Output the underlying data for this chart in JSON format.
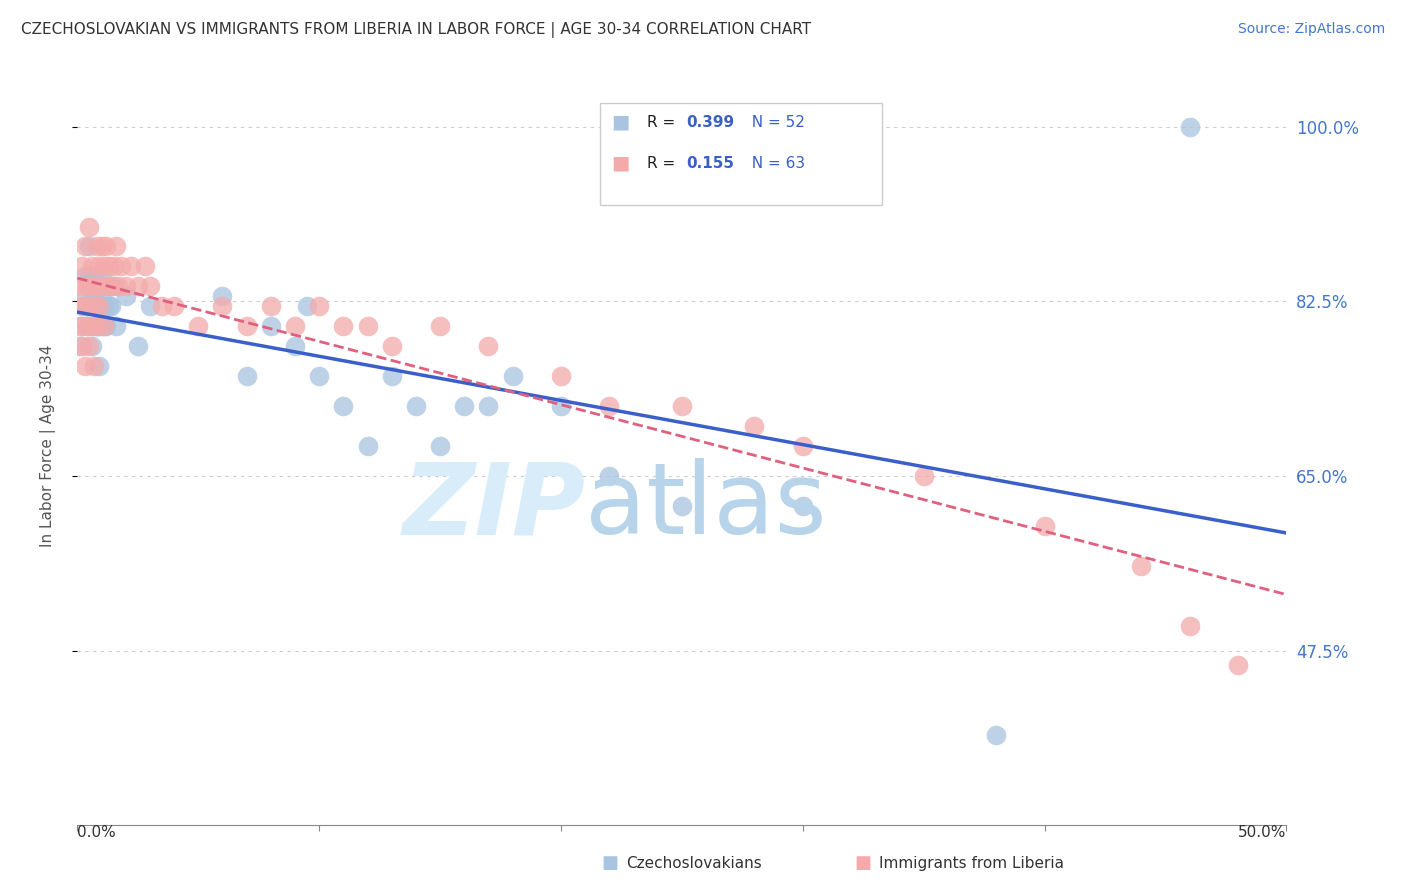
{
  "title": "CZECHOSLOVAKIAN VS IMMIGRANTS FROM LIBERIA IN LABOR FORCE | AGE 30-34 CORRELATION CHART",
  "source": "Source: ZipAtlas.com",
  "ylabel_labels": [
    "100.0%",
    "82.5%",
    "65.0%",
    "47.5%"
  ],
  "ylabel_values": [
    1.0,
    0.825,
    0.65,
    0.475
  ],
  "legend_label_blue": "Czechoslovakians",
  "legend_label_pink": "Immigrants from Liberia",
  "blue_R": 0.399,
  "blue_N": 52,
  "pink_R": 0.155,
  "pink_N": 63,
  "blue_color": "#A8C4E0",
  "pink_color": "#F4AAAA",
  "blue_line_color": "#3A5FC8",
  "pink_line_color": "#E06080",
  "xlim": [
    0.0,
    0.5
  ],
  "ylim": [
    0.3,
    1.06
  ],
  "blue_x": [
    0.001,
    0.002,
    0.003,
    0.003,
    0.004,
    0.004,
    0.005,
    0.005,
    0.005,
    0.006,
    0.006,
    0.007,
    0.007,
    0.007,
    0.008,
    0.008,
    0.009,
    0.009,
    0.009,
    0.01,
    0.01,
    0.01,
    0.011,
    0.011,
    0.012,
    0.013,
    0.014,
    0.015,
    0.016,
    0.02,
    0.025,
    0.03,
    0.06,
    0.07,
    0.08,
    0.09,
    0.095,
    0.1,
    0.11,
    0.12,
    0.13,
    0.14,
    0.15,
    0.16,
    0.17,
    0.18,
    0.2,
    0.22,
    0.25,
    0.3,
    0.38,
    0.46
  ],
  "blue_y": [
    0.78,
    0.8,
    0.83,
    0.85,
    0.82,
    0.8,
    0.85,
    0.82,
    0.88,
    0.84,
    0.78,
    0.83,
    0.8,
    0.85,
    0.82,
    0.8,
    0.84,
    0.8,
    0.76,
    0.83,
    0.85,
    0.8,
    0.84,
    0.82,
    0.8,
    0.82,
    0.82,
    0.84,
    0.8,
    0.83,
    0.78,
    0.82,
    0.83,
    0.75,
    0.8,
    0.78,
    0.82,
    0.75,
    0.72,
    0.68,
    0.75,
    0.72,
    0.68,
    0.72,
    0.72,
    0.75,
    0.72,
    0.65,
    0.62,
    0.62,
    0.39,
    1.0
  ],
  "pink_x": [
    0.001,
    0.001,
    0.002,
    0.002,
    0.002,
    0.003,
    0.003,
    0.003,
    0.004,
    0.004,
    0.005,
    0.005,
    0.005,
    0.006,
    0.006,
    0.007,
    0.007,
    0.007,
    0.008,
    0.008,
    0.008,
    0.009,
    0.009,
    0.01,
    0.01,
    0.011,
    0.011,
    0.012,
    0.012,
    0.013,
    0.014,
    0.015,
    0.016,
    0.017,
    0.018,
    0.02,
    0.022,
    0.025,
    0.028,
    0.03,
    0.035,
    0.04,
    0.05,
    0.06,
    0.07,
    0.08,
    0.09,
    0.1,
    0.11,
    0.12,
    0.13,
    0.15,
    0.17,
    0.2,
    0.22,
    0.25,
    0.28,
    0.3,
    0.35,
    0.4,
    0.44,
    0.46,
    0.48
  ],
  "pink_y": [
    0.8,
    0.84,
    0.78,
    0.82,
    0.86,
    0.76,
    0.82,
    0.88,
    0.8,
    0.84,
    0.78,
    0.84,
    0.9,
    0.8,
    0.86,
    0.82,
    0.76,
    0.84,
    0.8,
    0.84,
    0.88,
    0.82,
    0.86,
    0.84,
    0.88,
    0.8,
    0.86,
    0.84,
    0.88,
    0.86,
    0.84,
    0.86,
    0.88,
    0.84,
    0.86,
    0.84,
    0.86,
    0.84,
    0.86,
    0.84,
    0.82,
    0.82,
    0.8,
    0.82,
    0.8,
    0.82,
    0.8,
    0.82,
    0.8,
    0.8,
    0.78,
    0.8,
    0.78,
    0.75,
    0.72,
    0.72,
    0.7,
    0.68,
    0.65,
    0.6,
    0.56,
    0.5,
    0.46
  ]
}
